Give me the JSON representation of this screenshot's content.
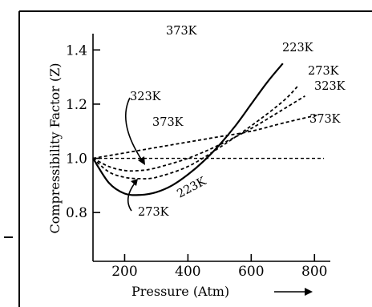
{
  "chart_data": {
    "type": "line",
    "title": "",
    "xlabel": "Pressure (Atm)",
    "ylabel": "Compressibility Factor (Z)",
    "xlim": [
      100,
      850
    ],
    "ylim": [
      0.62,
      1.46
    ],
    "x_ticks": [
      200,
      400,
      600,
      800
    ],
    "y_ticks": [
      0.8,
      1.0,
      1.2,
      1.4
    ],
    "x_tick_labels": [
      "200",
      "400",
      "600",
      "800"
    ],
    "y_tick_labels": [
      "0.8",
      "1.0",
      "1.2",
      "1.4"
    ],
    "grid": false,
    "series": [
      {
        "name": "223K",
        "style": "solid",
        "x": [
          100,
          150,
          200,
          250,
          300,
          350,
          400,
          450,
          500,
          550,
          600,
          650,
          700
        ],
        "y": [
          1.0,
          0.91,
          0.87,
          0.865,
          0.875,
          0.9,
          0.94,
          0.99,
          1.05,
          1.12,
          1.2,
          1.28,
          1.35
        ]
      },
      {
        "name": "273K",
        "style": "dashed",
        "x": [
          100,
          150,
          200,
          250,
          300,
          400,
          500,
          600,
          700,
          750
        ],
        "y": [
          1.0,
          0.95,
          0.93,
          0.925,
          0.93,
          0.97,
          1.04,
          1.12,
          1.21,
          1.27
        ]
      },
      {
        "name": "323K",
        "style": "dashed",
        "x": [
          100,
          150,
          200,
          250,
          300,
          400,
          500,
          600,
          700,
          770
        ],
        "y": [
          1.0,
          0.97,
          0.955,
          0.955,
          0.965,
          1.0,
          1.05,
          1.11,
          1.18,
          1.23
        ]
      },
      {
        "name": "373K",
        "style": "dashed",
        "x": [
          100,
          200,
          300,
          400,
          500,
          600,
          700,
          810
        ],
        "y": [
          1.0,
          1.02,
          1.04,
          1.06,
          1.08,
          1.1,
          1.13,
          1.16
        ]
      },
      {
        "name": "ideal",
        "style": "ideal",
        "x": [
          100,
          830
        ],
        "y": [
          1.0,
          1.0
        ]
      }
    ],
    "annotations": [
      {
        "text": "373K",
        "id": "top-373k"
      },
      {
        "text": "223K",
        "id": "label-223k-end"
      },
      {
        "text": "273K",
        "id": "label-273k-end"
      },
      {
        "text": "323K",
        "id": "label-323k-end"
      },
      {
        "text": "373K",
        "id": "label-373k-end"
      },
      {
        "text": "323K",
        "id": "label-323k-left"
      },
      {
        "text": "373K",
        "id": "label-373k-left"
      },
      {
        "text": "223K",
        "id": "label-223k-mid"
      },
      {
        "text": "273K",
        "id": "label-273k-bottom"
      }
    ],
    "x_label_arrow": "→"
  }
}
